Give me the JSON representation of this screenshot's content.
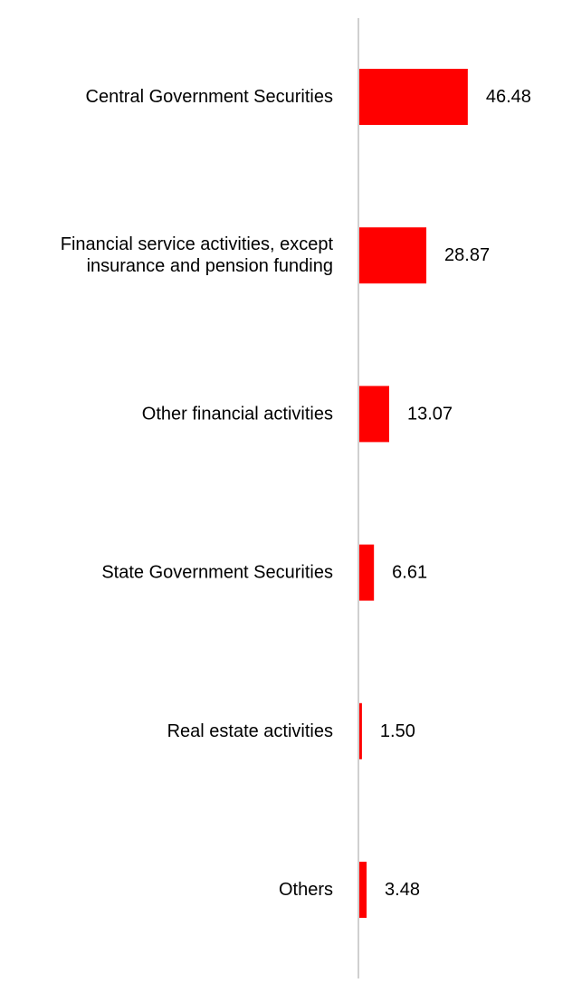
{
  "chart_data": {
    "type": "bar",
    "orientation": "horizontal",
    "categories": [
      [
        "Central Government Securities"
      ],
      [
        "Financial service activities, except",
        "insurance and pension funding"
      ],
      [
        "Other financial activities"
      ],
      [
        "State Government Securities"
      ],
      [
        "Real estate activities"
      ],
      [
        "Others"
      ]
    ],
    "values": [
      46.48,
      28.87,
      13.07,
      6.61,
      1.5,
      3.48
    ],
    "value_labels": [
      "46.48",
      "28.87",
      "13.07",
      "6.61",
      "1.50",
      "3.48"
    ],
    "title": "",
    "xlabel": "",
    "ylabel": "",
    "xlim": [
      0,
      50
    ],
    "grid": false,
    "legend": "none",
    "colors": {
      "bar": "#ff0000",
      "axis": "#d0d0d0",
      "text": "#000000"
    }
  }
}
